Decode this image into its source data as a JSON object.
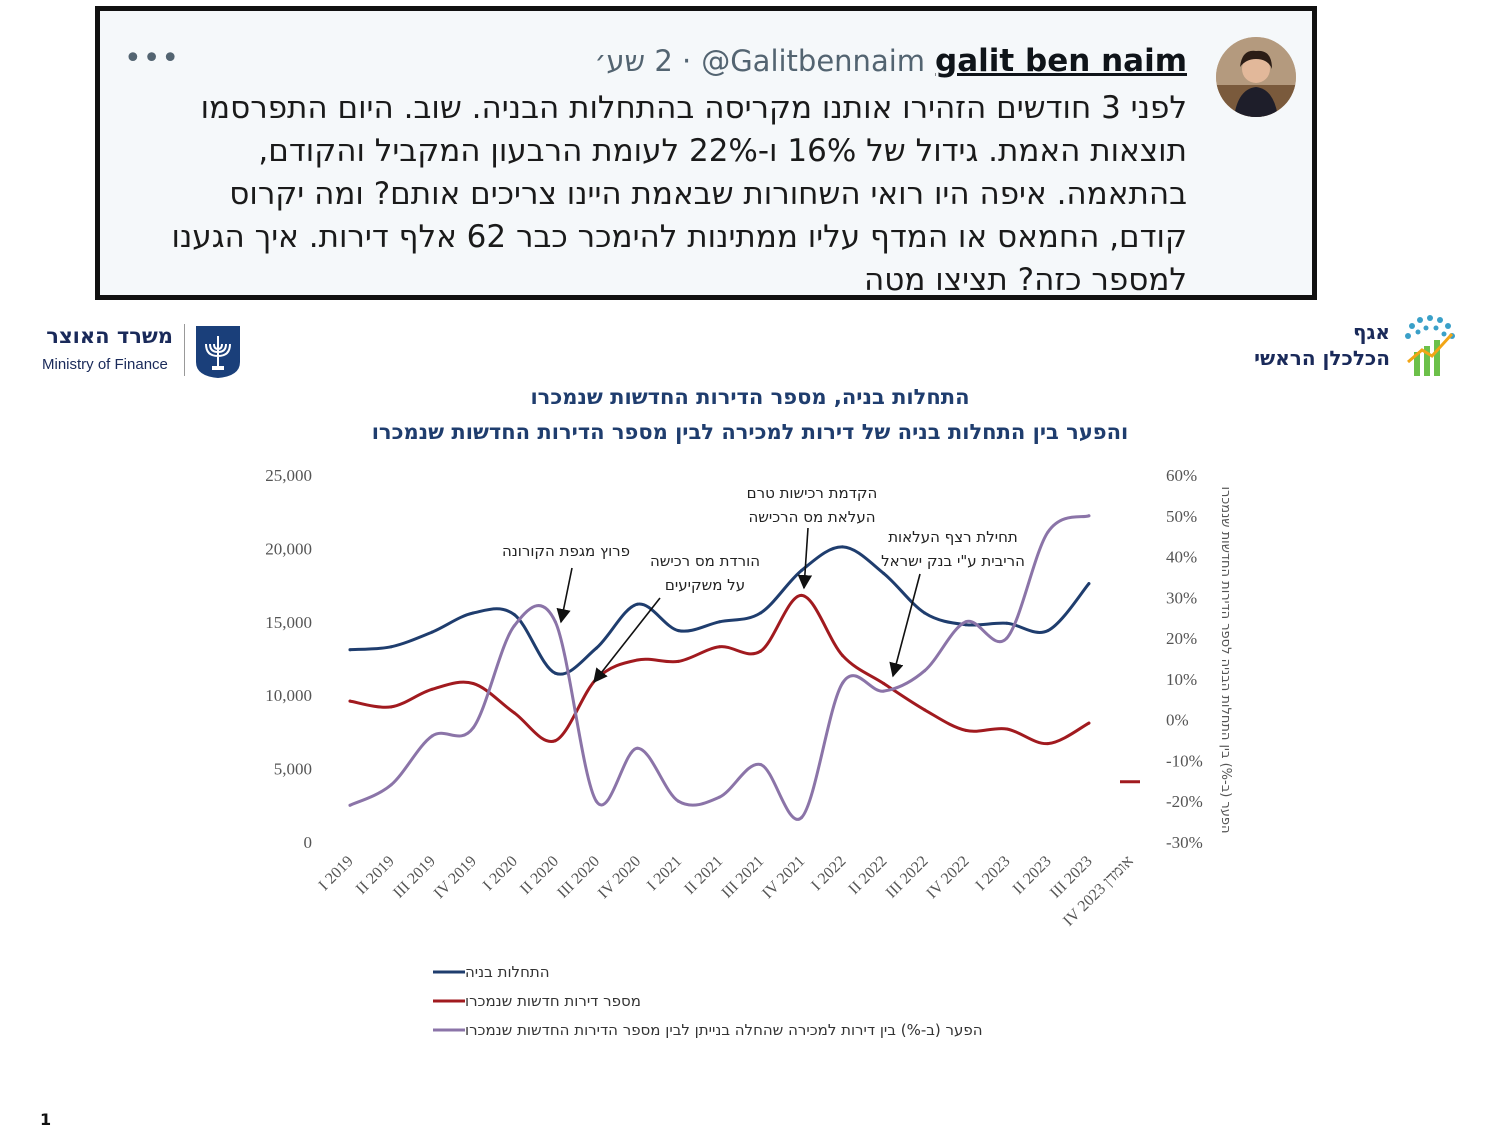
{
  "tweet": {
    "author_name": "galit ben naim",
    "author_handle": "@Galitbennaim",
    "time": "· 2 שע׳",
    "more": "•••",
    "lines": [
      "לפני 3 חודשים הזהירו אותנו מקריסה בהתחלות הבניה. שוב. היום התפרסמו",
      "תוצאות האמת. גידול של 16% ו-22% לעומת הרבעון המקביל והקודם,",
      "בהתאמה. איפה היו רואי השחורות שבאמת היינו צריכים אותם? ומה יקרוס",
      "קודם, החמאס או המדף עליו ממתינות להימכר כבר 62 אלף דירות. איך הגענו",
      "למספר כזה? תציצו מטה"
    ]
  },
  "logos": {
    "ministry_he": "משרד האוצר",
    "ministry_en": "Ministry of Finance",
    "chief_economist_line1": "אגף",
    "chief_economist_line2": "הכלכלן הראשי"
  },
  "page_number": "1",
  "colors": {
    "starts": "#1f3d6e",
    "sold": "#a11a1f",
    "gap": "#8b74a8",
    "axis_text": "#555555"
  },
  "chart_data": {
    "type": "line",
    "title": "התחלות בניה, מספר הדירות החדשות שנמכרו",
    "subtitle": "והפער בין התחלות בניה של דירות למכירה לבין מספר הדירות החדשות שנמכרו",
    "categories": [
      "I 2019",
      "II 2019",
      "III 2019",
      "IV 2019",
      "I 2020",
      "II 2020",
      "III 2020",
      "IV 2020",
      "I 2021",
      "II 2021",
      "III 2021",
      "IV 2021",
      "I 2022",
      "II 2022",
      "III 2022",
      "IV 2022",
      "I 2023",
      "II 2023",
      "III 2023",
      "IV 2023 אומדן"
    ],
    "y_left": {
      "min": 0,
      "max": 25000,
      "ticks": [
        0,
        5000,
        10000,
        15000,
        20000,
        25000
      ],
      "tick_labels": [
        "0",
        "5,000",
        "10,000",
        "15,000",
        "20,000",
        "25,000"
      ]
    },
    "y_right": {
      "min": -30,
      "max": 60,
      "ticks": [
        -30,
        -20,
        -10,
        0,
        10,
        20,
        30,
        40,
        50,
        60
      ],
      "tick_labels": [
        "-30%",
        "-20%",
        "-10%",
        "0%",
        "10%",
        "20%",
        "30%",
        "40%",
        "50%",
        "60%"
      ],
      "label": "הפער (ב-%) בין התחלות הבניה לספר הדירות החדשות שנמכרו"
    },
    "series": [
      {
        "name": "התחלות בניה",
        "axis": "left",
        "color": "#1f3d6e",
        "values": [
          13100,
          13300,
          14300,
          15600,
          15500,
          11500,
          13200,
          16200,
          14400,
          15000,
          15600,
          18500,
          20100,
          18300,
          15600,
          14800,
          14900,
          14400,
          17600,
          null
        ]
      },
      {
        "name": "מספר דירות חדשות שנמכרו",
        "axis": "left",
        "color": "#a11a1f",
        "values": [
          9600,
          9200,
          10400,
          10800,
          8800,
          6900,
          11100,
          12400,
          12300,
          13300,
          13000,
          16800,
          12700,
          10800,
          9000,
          7600,
          7700,
          6700,
          8100,
          4100
        ]
      },
      {
        "name": "הפער (ב-%) בין דירות למכירה שהחלה בנייתן לבין מספר הדירות החדשות שנמכרו",
        "axis": "right",
        "color": "#8b74a8",
        "values": [
          -21,
          -16,
          -4,
          -2,
          23,
          24,
          -20,
          -7,
          -20,
          -19,
          -11,
          -24,
          9,
          7,
          12,
          24,
          20,
          46,
          50,
          null
        ]
      }
    ],
    "annotations": [
      {
        "lines": [
          "פרוץ מגפת הקורונה"
        ]
      },
      {
        "lines": [
          "הורדת מס רכישה",
          "על משקיעים"
        ]
      },
      {
        "lines": [
          "הקדמת רכישות טרם",
          "העלאת מס הרכישה"
        ]
      },
      {
        "lines": [
          "תחילת רצף העלאות",
          "הריבית ע\"י בנק ישראל"
        ]
      }
    ],
    "legend_position": "bottom-left",
    "grid": false
  }
}
